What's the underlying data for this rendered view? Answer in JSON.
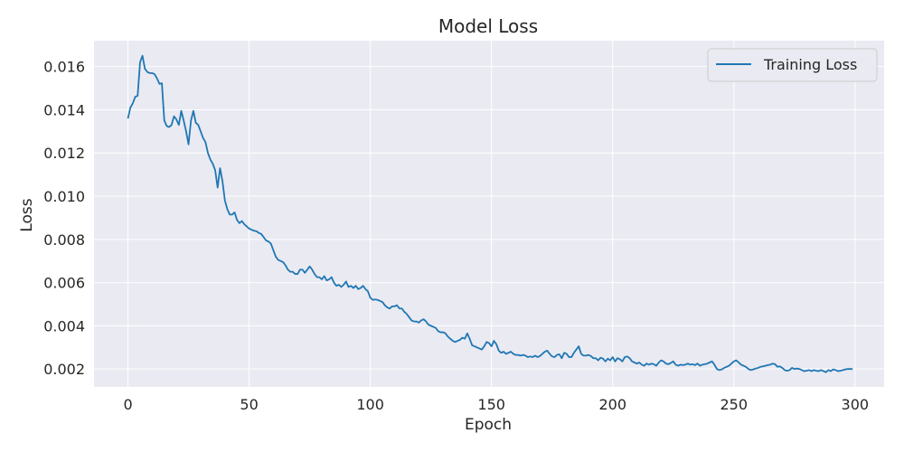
{
  "chart_data": {
    "type": "line",
    "title": "Model Loss",
    "xlabel": "Epoch",
    "ylabel": "Loss",
    "xlim": [
      -14,
      312
    ],
    "ylim": [
      0.00117,
      0.0172
    ],
    "xticks": [
      0,
      50,
      100,
      150,
      200,
      250,
      300
    ],
    "yticks": [
      0.002,
      0.004,
      0.006,
      0.008,
      0.01,
      0.012,
      0.014,
      0.016
    ],
    "xtick_labels": [
      "0",
      "50",
      "100",
      "150",
      "200",
      "250",
      "300"
    ],
    "ytick_labels": [
      "0.002",
      "0.004",
      "0.006",
      "0.008",
      "0.010",
      "0.012",
      "0.014",
      "0.016"
    ],
    "grid": true,
    "legend_position": "top-right",
    "background_color": "#eaeaf2",
    "grid_color": "#ffffff",
    "series": [
      {
        "name": "Training Loss",
        "color": "#1f77b4",
        "points": [
          [
            0,
            0.0136
          ],
          [
            1,
            0.0141
          ],
          [
            2,
            0.0143
          ],
          [
            3,
            0.0146
          ],
          [
            4,
            0.01465
          ],
          [
            5,
            0.0162
          ],
          [
            6,
            0.0165
          ],
          [
            7,
            0.0159
          ],
          [
            8,
            0.01575
          ],
          [
            9,
            0.0157
          ],
          [
            10,
            0.0157
          ],
          [
            11,
            0.01565
          ],
          [
            12,
            0.01545
          ],
          [
            13,
            0.0152
          ],
          [
            14,
            0.01523
          ],
          [
            15,
            0.0135
          ],
          [
            16,
            0.01325
          ],
          [
            17,
            0.0132
          ],
          [
            18,
            0.0133
          ],
          [
            19,
            0.0137
          ],
          [
            20,
            0.01355
          ],
          [
            21,
            0.0133
          ],
          [
            22,
            0.01395
          ],
          [
            23,
            0.0135
          ],
          [
            24,
            0.013
          ],
          [
            25,
            0.0124
          ],
          [
            26,
            0.0135
          ],
          [
            27,
            0.01395
          ],
          [
            28,
            0.0134
          ],
          [
            29,
            0.0133
          ],
          [
            30,
            0.013
          ],
          [
            31,
            0.0127
          ],
          [
            32,
            0.0125
          ],
          [
            33,
            0.012
          ],
          [
            34,
            0.0117
          ],
          [
            35,
            0.0115
          ],
          [
            36,
            0.0112
          ],
          [
            37,
            0.0104
          ],
          [
            38,
            0.0113
          ],
          [
            39,
            0.0107
          ],
          [
            40,
            0.0098
          ],
          [
            41,
            0.0094
          ],
          [
            42,
            0.00915
          ],
          [
            43,
            0.00915
          ],
          [
            44,
            0.00925
          ],
          [
            45,
            0.0089
          ],
          [
            46,
            0.00875
          ],
          [
            47,
            0.00885
          ],
          [
            48,
            0.0087
          ],
          [
            49,
            0.0086
          ],
          [
            50,
            0.0085
          ],
          [
            51,
            0.00845
          ],
          [
            52,
            0.0084
          ],
          [
            53,
            0.00838
          ],
          [
            54,
            0.0083
          ],
          [
            55,
            0.00825
          ],
          [
            56,
            0.0081
          ],
          [
            57,
            0.00795
          ],
          [
            58,
            0.0079
          ],
          [
            59,
            0.0078
          ],
          [
            60,
            0.0075
          ],
          [
            61,
            0.0072
          ],
          [
            62,
            0.00705
          ],
          [
            63,
            0.007
          ],
          [
            64,
            0.00695
          ],
          [
            65,
            0.0068
          ],
          [
            66,
            0.0066
          ],
          [
            67,
            0.0065
          ],
          [
            68,
            0.0065
          ],
          [
            69,
            0.0064
          ],
          [
            70,
            0.0064
          ],
          [
            71,
            0.0066
          ],
          [
            72,
            0.0066
          ],
          [
            73,
            0.00645
          ],
          [
            74,
            0.0066
          ],
          [
            75,
            0.00675
          ],
          [
            76,
            0.0066
          ],
          [
            77,
            0.0064
          ],
          [
            78,
            0.00625
          ],
          [
            79,
            0.00625
          ],
          [
            80,
            0.00615
          ],
          [
            81,
            0.0063
          ],
          [
            82,
            0.0061
          ],
          [
            83,
            0.00615
          ],
          [
            84,
            0.00625
          ],
          [
            85,
            0.006
          ],
          [
            86,
            0.00585
          ],
          [
            87,
            0.0059
          ],
          [
            88,
            0.0058
          ],
          [
            89,
            0.0059
          ],
          [
            90,
            0.00605
          ],
          [
            91,
            0.0058
          ],
          [
            92,
            0.00585
          ],
          [
            93,
            0.00575
          ],
          [
            94,
            0.00585
          ],
          [
            95,
            0.0057
          ],
          [
            96,
            0.00575
          ],
          [
            97,
            0.00585
          ],
          [
            98,
            0.0057
          ],
          [
            99,
            0.0056
          ],
          [
            100,
            0.0053
          ],
          [
            101,
            0.0052
          ],
          [
            102,
            0.00522
          ],
          [
            103,
            0.0052
          ],
          [
            104,
            0.00515
          ],
          [
            105,
            0.0051
          ],
          [
            106,
            0.00495
          ],
          [
            107,
            0.00485
          ],
          [
            108,
            0.0048
          ],
          [
            109,
            0.0049
          ],
          [
            110,
            0.0049
          ],
          [
            111,
            0.00495
          ],
          [
            112,
            0.0048
          ],
          [
            113,
            0.0048
          ],
          [
            114,
            0.00465
          ],
          [
            115,
            0.00455
          ],
          [
            116,
            0.0044
          ],
          [
            117,
            0.00425
          ],
          [
            118,
            0.0042
          ],
          [
            119,
            0.0042
          ],
          [
            120,
            0.00415
          ],
          [
            121,
            0.00425
          ],
          [
            122,
            0.0043
          ],
          [
            123,
            0.0042
          ],
          [
            124,
            0.00405
          ],
          [
            125,
            0.004
          ],
          [
            126,
            0.00395
          ],
          [
            127,
            0.0039
          ],
          [
            128,
            0.00375
          ],
          [
            129,
            0.0037
          ],
          [
            130,
            0.0037
          ],
          [
            131,
            0.00365
          ],
          [
            132,
            0.0035
          ],
          [
            133,
            0.0034
          ],
          [
            134,
            0.0033
          ],
          [
            135,
            0.00325
          ],
          [
            136,
            0.0033
          ],
          [
            137,
            0.00335
          ],
          [
            138,
            0.00345
          ],
          [
            139,
            0.0034
          ],
          [
            140,
            0.00365
          ],
          [
            141,
            0.0034
          ],
          [
            142,
            0.0031
          ],
          [
            143,
            0.00305
          ],
          [
            144,
            0.003
          ],
          [
            145,
            0.00295
          ],
          [
            146,
            0.0029
          ],
          [
            147,
            0.00305
          ],
          [
            148,
            0.00325
          ],
          [
            149,
            0.0032
          ],
          [
            150,
            0.00305
          ],
          [
            151,
            0.0033
          ],
          [
            152,
            0.00315
          ],
          [
            153,
            0.00285
          ],
          [
            154,
            0.00275
          ],
          [
            155,
            0.0028
          ],
          [
            156,
            0.0027
          ],
          [
            157,
            0.00275
          ],
          [
            158,
            0.0028
          ],
          [
            159,
            0.0027
          ],
          [
            160,
            0.00265
          ],
          [
            161,
            0.00265
          ],
          [
            162,
            0.00262
          ],
          [
            163,
            0.00265
          ],
          [
            164,
            0.00262
          ],
          [
            165,
            0.00255
          ],
          [
            166,
            0.00258
          ],
          [
            167,
            0.00255
          ],
          [
            168,
            0.00262
          ],
          [
            169,
            0.00255
          ],
          [
            170,
            0.0026
          ],
          [
            171,
            0.0027
          ],
          [
            172,
            0.0028
          ],
          [
            173,
            0.00285
          ],
          [
            174,
            0.0027
          ],
          [
            175,
            0.00258
          ],
          [
            176,
            0.00255
          ],
          [
            177,
            0.00265
          ],
          [
            178,
            0.00268
          ],
          [
            179,
            0.0025
          ],
          [
            180,
            0.00275
          ],
          [
            181,
            0.0027
          ],
          [
            182,
            0.00255
          ],
          [
            183,
            0.00255
          ],
          [
            184,
            0.00275
          ],
          [
            185,
            0.0029
          ],
          [
            186,
            0.00305
          ],
          [
            187,
            0.0027
          ],
          [
            188,
            0.00262
          ],
          [
            189,
            0.00262
          ],
          [
            190,
            0.00265
          ],
          [
            191,
            0.0026
          ],
          [
            192,
            0.0025
          ],
          [
            193,
            0.0025
          ],
          [
            194,
            0.0024
          ],
          [
            195,
            0.00252
          ],
          [
            196,
            0.00248
          ],
          [
            197,
            0.00235
          ],
          [
            198,
            0.00248
          ],
          [
            199,
            0.0024
          ],
          [
            200,
            0.00255
          ],
          [
            201,
            0.00235
          ],
          [
            202,
            0.0025
          ],
          [
            203,
            0.00245
          ],
          [
            204,
            0.00235
          ],
          [
            205,
            0.00255
          ],
          [
            206,
            0.00258
          ],
          [
            207,
            0.0025
          ],
          [
            208,
            0.00235
          ],
          [
            209,
            0.0023
          ],
          [
            210,
            0.00225
          ],
          [
            211,
            0.0023
          ],
          [
            212,
            0.0022
          ],
          [
            213,
            0.00215
          ],
          [
            214,
            0.00225
          ],
          [
            215,
            0.0022
          ],
          [
            216,
            0.00225
          ],
          [
            217,
            0.00222
          ],
          [
            218,
            0.00215
          ],
          [
            219,
            0.0023
          ],
          [
            220,
            0.0024
          ],
          [
            221,
            0.00235
          ],
          [
            222,
            0.00225
          ],
          [
            223,
            0.00222
          ],
          [
            224,
            0.00228
          ],
          [
            225,
            0.00235
          ],
          [
            226,
            0.0022
          ],
          [
            227,
            0.00215
          ],
          [
            228,
            0.0022
          ],
          [
            229,
            0.00218
          ],
          [
            230,
            0.0022
          ],
          [
            231,
            0.00225
          ],
          [
            232,
            0.0022
          ],
          [
            233,
            0.00222
          ],
          [
            234,
            0.00218
          ],
          [
            235,
            0.00225
          ],
          [
            236,
            0.00215
          ],
          [
            237,
            0.0022
          ],
          [
            238,
            0.00222
          ],
          [
            239,
            0.00225
          ],
          [
            240,
            0.0023
          ],
          [
            241,
            0.00235
          ],
          [
            242,
            0.0022
          ],
          [
            243,
            0.002
          ],
          [
            244,
            0.00195
          ],
          [
            245,
            0.00198
          ],
          [
            246,
            0.00205
          ],
          [
            247,
            0.0021
          ],
          [
            248,
            0.00215
          ],
          [
            249,
            0.00225
          ],
          [
            250,
            0.00235
          ],
          [
            251,
            0.0024
          ],
          [
            252,
            0.0023
          ],
          [
            253,
            0.0022
          ],
          [
            254,
            0.00215
          ],
          [
            255,
            0.0021
          ],
          [
            256,
            0.002
          ],
          [
            257,
            0.00195
          ],
          [
            258,
            0.00198
          ],
          [
            259,
            0.00202
          ],
          [
            260,
            0.00205
          ],
          [
            261,
            0.0021
          ],
          [
            262,
            0.00212
          ],
          [
            263,
            0.00215
          ],
          [
            264,
            0.00218
          ],
          [
            265,
            0.0022
          ],
          [
            266,
            0.00225
          ],
          [
            267,
            0.00222
          ],
          [
            268,
            0.0021
          ],
          [
            269,
            0.00212
          ],
          [
            270,
            0.00205
          ],
          [
            271,
            0.00195
          ],
          [
            272,
            0.00192
          ],
          [
            273,
            0.00195
          ],
          [
            274,
            0.00205
          ],
          [
            275,
            0.002
          ],
          [
            276,
            0.00202
          ],
          [
            277,
            0.002
          ],
          [
            278,
            0.00195
          ],
          [
            279,
            0.0019
          ],
          [
            280,
            0.00192
          ],
          [
            281,
            0.00195
          ],
          [
            282,
            0.0019
          ],
          [
            283,
            0.00195
          ],
          [
            284,
            0.00192
          ],
          [
            285,
            0.0019
          ],
          [
            286,
            0.00195
          ],
          [
            287,
            0.0019
          ],
          [
            288,
            0.00185
          ],
          [
            289,
            0.00195
          ],
          [
            290,
            0.0019
          ],
          [
            291,
            0.00198
          ],
          [
            292,
            0.00195
          ],
          [
            293,
            0.0019
          ],
          [
            294,
            0.00192
          ],
          [
            295,
            0.00195
          ],
          [
            296,
            0.00198
          ],
          [
            297,
            0.002
          ],
          [
            298,
            0.002
          ],
          [
            299,
            0.002
          ]
        ]
      }
    ]
  }
}
